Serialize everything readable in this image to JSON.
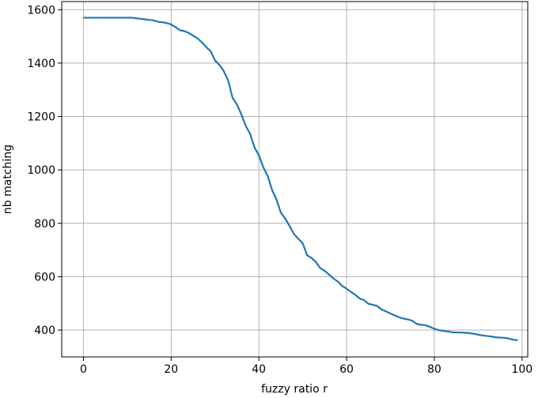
{
  "chart_data": {
    "type": "line",
    "x_label": "fuzzy ratio r",
    "y_label": "nb matching",
    "x": [
      0,
      1,
      2,
      3,
      4,
      5,
      6,
      7,
      8,
      9,
      10,
      11,
      12,
      13,
      14,
      15,
      16,
      17,
      18,
      19,
      20,
      21,
      22,
      23,
      24,
      25,
      26,
      27,
      28,
      29,
      30,
      31,
      32,
      33,
      34,
      35,
      36,
      37,
      38,
      39,
      40,
      41,
      42,
      43,
      44,
      45,
      46,
      47,
      48,
      49,
      50,
      51,
      52,
      53,
      54,
      55,
      56,
      57,
      58,
      59,
      60,
      61,
      62,
      63,
      64,
      65,
      66,
      67,
      68,
      69,
      70,
      71,
      72,
      73,
      74,
      75,
      76,
      77,
      78,
      79,
      80,
      81,
      82,
      83,
      84,
      85,
      86,
      87,
      88,
      89,
      90,
      91,
      92,
      93,
      94,
      95,
      96,
      97,
      98,
      99
    ],
    "series": [
      {
        "color": "#1f77b4",
        "values": [
          1570,
          1570,
          1570,
          1570,
          1570,
          1570,
          1570,
          1570,
          1570,
          1570,
          1570,
          1570,
          1568,
          1566,
          1564,
          1562,
          1560,
          1555,
          1553,
          1550,
          1545,
          1535,
          1523,
          1520,
          1513,
          1503,
          1493,
          1478,
          1460,
          1445,
          1410,
          1393,
          1370,
          1335,
          1270,
          1245,
          1208,
          1165,
          1135,
          1085,
          1055,
          1010,
          978,
          925,
          890,
          840,
          818,
          790,
          760,
          742,
          725,
          680,
          670,
          655,
          632,
          622,
          608,
          593,
          582,
          565,
          555,
          543,
          532,
          518,
          512,
          498,
          495,
          490,
          477,
          470,
          462,
          455,
          448,
          443,
          440,
          435,
          423,
          420,
          418,
          412,
          405,
          400,
          397,
          395,
          392,
          391,
          391,
          390,
          389,
          386,
          383,
          380,
          378,
          376,
          373,
          372,
          371,
          368,
          364,
          362
        ]
      }
    ],
    "xlim": [
      -4.95,
      101.3
    ],
    "ylim": [
      299.5,
      1630.5
    ],
    "xticks": [
      0,
      20,
      40,
      60,
      80,
      100
    ],
    "yticks": [
      400,
      600,
      800,
      1000,
      1200,
      1400,
      1600
    ],
    "grid": true
  }
}
